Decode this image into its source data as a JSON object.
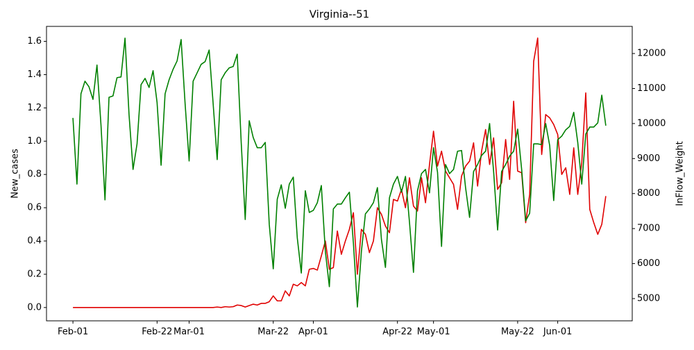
{
  "chart_data": {
    "type": "line",
    "title": "Virginia--51",
    "y_label": "New_cases",
    "y2_label": "InFlow_Weight",
    "categories": [
      "Feb-01",
      null,
      null,
      null,
      null,
      null,
      null,
      null,
      null,
      null,
      null,
      null,
      null,
      null,
      null,
      null,
      null,
      null,
      null,
      null,
      null,
      "Feb-22",
      null,
      null,
      null,
      null,
      null,
      null,
      null,
      "Mar-01",
      null,
      null,
      null,
      null,
      null,
      null,
      null,
      null,
      null,
      null,
      null,
      null,
      null,
      null,
      null,
      null,
      null,
      null,
      null,
      null,
      "Mar-22",
      null,
      null,
      null,
      null,
      null,
      null,
      null,
      null,
      null,
      "Apr-01",
      null,
      null,
      null,
      null,
      null,
      null,
      null,
      null,
      null,
      null,
      null,
      null,
      null,
      null,
      null,
      null,
      null,
      null,
      null,
      null,
      "Apr-22",
      null,
      null,
      null,
      null,
      null,
      null,
      null,
      null,
      "May-01",
      null,
      null,
      null,
      null,
      null,
      null,
      null,
      null,
      null,
      null,
      null,
      null,
      null,
      null,
      null,
      null,
      null,
      null,
      null,
      null,
      "May-22",
      null,
      null,
      null,
      null,
      null,
      null,
      null,
      null,
      null,
      "Jun-01",
      null,
      null,
      null,
      null,
      null,
      null,
      null,
      null,
      null,
      null,
      null,
      null
    ],
    "series": [
      {
        "name": "New_cases",
        "color": "#e00000",
        "axis": "y",
        "values": [
          0,
          0,
          0,
          0,
          0,
          0,
          0,
          0,
          0,
          0,
          0,
          0,
          0,
          0,
          0,
          0,
          0,
          0,
          0,
          0,
          0,
          0,
          0,
          0,
          0,
          0,
          0,
          0,
          0,
          0,
          0,
          0,
          0,
          0,
          0,
          0,
          0.003,
          0,
          0.005,
          0.003,
          0.005,
          0.015,
          0.012,
          0.003,
          0.012,
          0.02,
          0.015,
          0.025,
          0.025,
          0.035,
          0.07,
          0.04,
          0.04,
          0.1,
          0.07,
          0.14,
          0.13,
          0.15,
          0.13,
          0.23,
          0.235,
          0.225,
          0.31,
          0.4,
          0.23,
          0.24,
          0.46,
          0.32,
          0.4,
          0.47,
          0.57,
          0.2,
          0.47,
          0.44,
          0.33,
          0.4,
          0.6,
          0.56,
          0.49,
          0.45,
          0.65,
          0.64,
          0.71,
          0.6,
          0.78,
          0.61,
          0.58,
          0.78,
          0.63,
          0.86,
          1.06,
          0.85,
          0.94,
          0.82,
          0.78,
          0.74,
          0.59,
          0.79,
          0.85,
          0.88,
          0.99,
          0.73,
          0.94,
          1.07,
          0.86,
          1.02,
          0.71,
          0.75,
          1.01,
          0.77,
          1.24,
          0.82,
          0.81,
          0.51,
          0.68,
          1.48,
          1.62,
          0.92,
          1.16,
          1.14,
          1.1,
          1.04,
          0.8,
          0.84,
          0.68,
          0.96,
          0.68,
          0.87,
          1.29,
          0.59,
          0.51,
          0.44,
          0.5,
          0.67
        ]
      },
      {
        "name": "InFlow_Weight",
        "color": "#008000",
        "axis": "y2",
        "values": [
          10160,
          8270,
          10850,
          11210,
          11050,
          10690,
          11670,
          9960,
          7820,
          10750,
          10790,
          11310,
          11330,
          12440,
          10260,
          8690,
          9420,
          11110,
          11290,
          11030,
          11510,
          10600,
          8810,
          10850,
          11250,
          11550,
          11790,
          12400,
          10560,
          8930,
          11210,
          11450,
          11690,
          11770,
          12100,
          10560,
          8970,
          11250,
          11450,
          11590,
          11630,
          11980,
          9460,
          7260,
          10080,
          9600,
          9310,
          9310,
          9460,
          7120,
          5850,
          7840,
          8250,
          7580,
          8270,
          8470,
          6730,
          5730,
          8080,
          7460,
          7520,
          7740,
          8230,
          6350,
          5340,
          7560,
          7700,
          7700,
          7880,
          8040,
          6590,
          4760,
          6350,
          7420,
          7560,
          7740,
          8170,
          6690,
          5890,
          7880,
          8270,
          8490,
          8040,
          8490,
          7180,
          5750,
          8080,
          8570,
          8690,
          8020,
          9310,
          8610,
          6490,
          8830,
          8570,
          8690,
          9210,
          9230,
          8170,
          7320,
          8630,
          8830,
          9090,
          9210,
          10000,
          8630,
          6960,
          8630,
          8830,
          9070,
          9210,
          9840,
          8690,
          7220,
          7440,
          9420,
          9420,
          9400,
          10000,
          9370,
          7800,
          9540,
          9640,
          9820,
          9920,
          10320,
          9460,
          8270,
          9700,
          9900,
          9900,
          10020,
          10810,
          9940
        ]
      }
    ],
    "ylim": [
      -0.08,
      1.69
    ],
    "yticks": [
      {
        "value": 0,
        "label": "0.0"
      },
      0.2,
      0.4,
      0.6,
      0.8,
      {
        "value": 1,
        "label": "1.0"
      },
      1.2,
      1.4,
      1.6
    ],
    "y2lim": [
      4365,
      12775
    ],
    "y2ticks": [
      5000,
      6000,
      7000,
      8000,
      9000,
      10000,
      11000,
      12000
    ],
    "grid": false
  }
}
